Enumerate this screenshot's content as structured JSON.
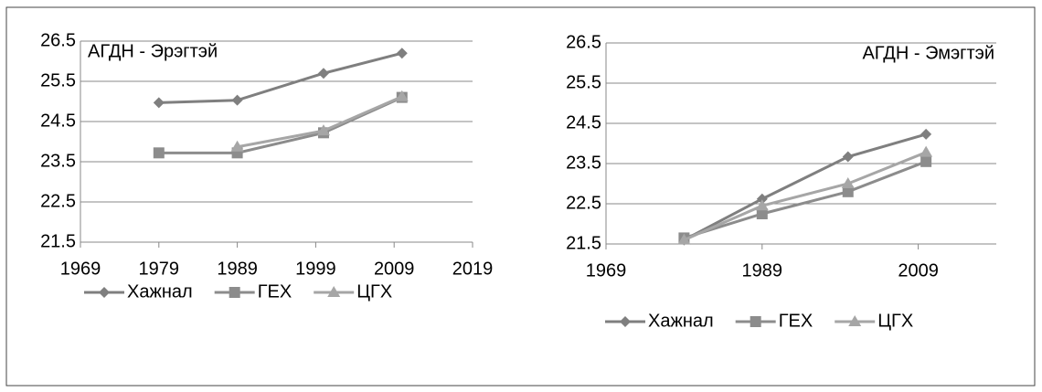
{
  "chart_data": [
    {
      "type": "line",
      "annotation": "АГДН - Эрэгтэй",
      "annotation_corner": "top-left",
      "x": [
        1979,
        1989,
        2000,
        2010
      ],
      "series": [
        {
          "name": "Хажнал",
          "color": "#7f7f7f",
          "marker": "diamond",
          "values": [
            24.97,
            25.03,
            25.7,
            26.2
          ]
        },
        {
          "name": "ГЕХ",
          "color": "#8c8c8c",
          "marker": "square",
          "values": [
            23.72,
            23.72,
            24.22,
            25.1
          ]
        },
        {
          "name": "ЦГХ",
          "color": "#a6a6a6",
          "marker": "triangle",
          "values": [
            null,
            23.87,
            24.27,
            25.12
          ]
        }
      ],
      "xlim": [
        1969,
        2019
      ],
      "xticks": [
        1969,
        1979,
        1989,
        1999,
        2009,
        2019
      ],
      "ylim": [
        21.5,
        26.5
      ],
      "yticks": [
        21.5,
        22.5,
        23.5,
        24.5,
        25.5,
        26.5
      ],
      "grid": true,
      "legend": "bottom"
    },
    {
      "type": "line",
      "annotation": "АГДН - Эмэгтэй",
      "annotation_corner": "top-right",
      "x": [
        1979,
        1989,
        2000,
        2010
      ],
      "series": [
        {
          "name": "Хажнал",
          "color": "#7f7f7f",
          "marker": "diamond",
          "values": [
            21.6,
            22.62,
            23.67,
            24.23
          ]
        },
        {
          "name": "ГЕХ",
          "color": "#8c8c8c",
          "marker": "square",
          "values": [
            21.65,
            22.25,
            22.8,
            23.55
          ]
        },
        {
          "name": "ЦГХ",
          "color": "#a6a6a6",
          "marker": "triangle",
          "values": [
            21.6,
            22.45,
            23.0,
            23.78
          ]
        }
      ],
      "xlim": [
        1969,
        2019
      ],
      "xticks": [
        1969,
        1989,
        2009
      ],
      "ylim": [
        21.5,
        26.5
      ],
      "yticks": [
        21.5,
        22.5,
        23.5,
        24.5,
        25.5,
        26.5
      ],
      "grid": true,
      "legend": "bottom"
    }
  ]
}
